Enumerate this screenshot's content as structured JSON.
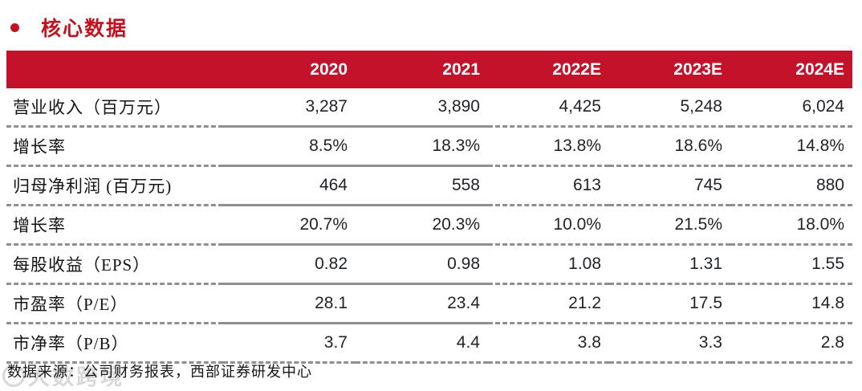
{
  "page": {
    "title": "核心数据"
  },
  "table": {
    "columns": [
      "2020",
      "2021",
      "2022E",
      "2023E",
      "2024E"
    ],
    "rows": [
      {
        "label": "营业收入（百万元）",
        "values": [
          "3,287",
          "3,890",
          "4,425",
          "5,248",
          "6,024"
        ]
      },
      {
        "label": "增长率",
        "values": [
          "8.5%",
          "18.3%",
          "13.8%",
          "18.6%",
          "14.8%"
        ]
      },
      {
        "label": "归母净利润 (百万元)",
        "values": [
          "464",
          "558",
          "613",
          "745",
          "880"
        ]
      },
      {
        "label": "增长率",
        "values": [
          "20.7%",
          "20.3%",
          "10.0%",
          "21.5%",
          "18.0%"
        ]
      },
      {
        "label": "每股收益（EPS）",
        "values": [
          "0.82",
          "0.98",
          "1.08",
          "1.31",
          "1.55"
        ]
      },
      {
        "label": "市盈率（P/E）",
        "values": [
          "28.1",
          "23.4",
          "21.2",
          "17.5",
          "14.8"
        ]
      },
      {
        "label": "市净率（P/B）",
        "values": [
          "3.7",
          "4.4",
          "3.8",
          "3.3",
          "2.8"
        ]
      }
    ]
  },
  "footer": {
    "source": "数据来源：公司财务报表，西部证券研发中心"
  },
  "watermark": {
    "text": "大数跨境"
  },
  "colors": {
    "accent_red": "#c5122b",
    "title_red": "#c2121f",
    "line_gray": "#8f8f8f"
  }
}
